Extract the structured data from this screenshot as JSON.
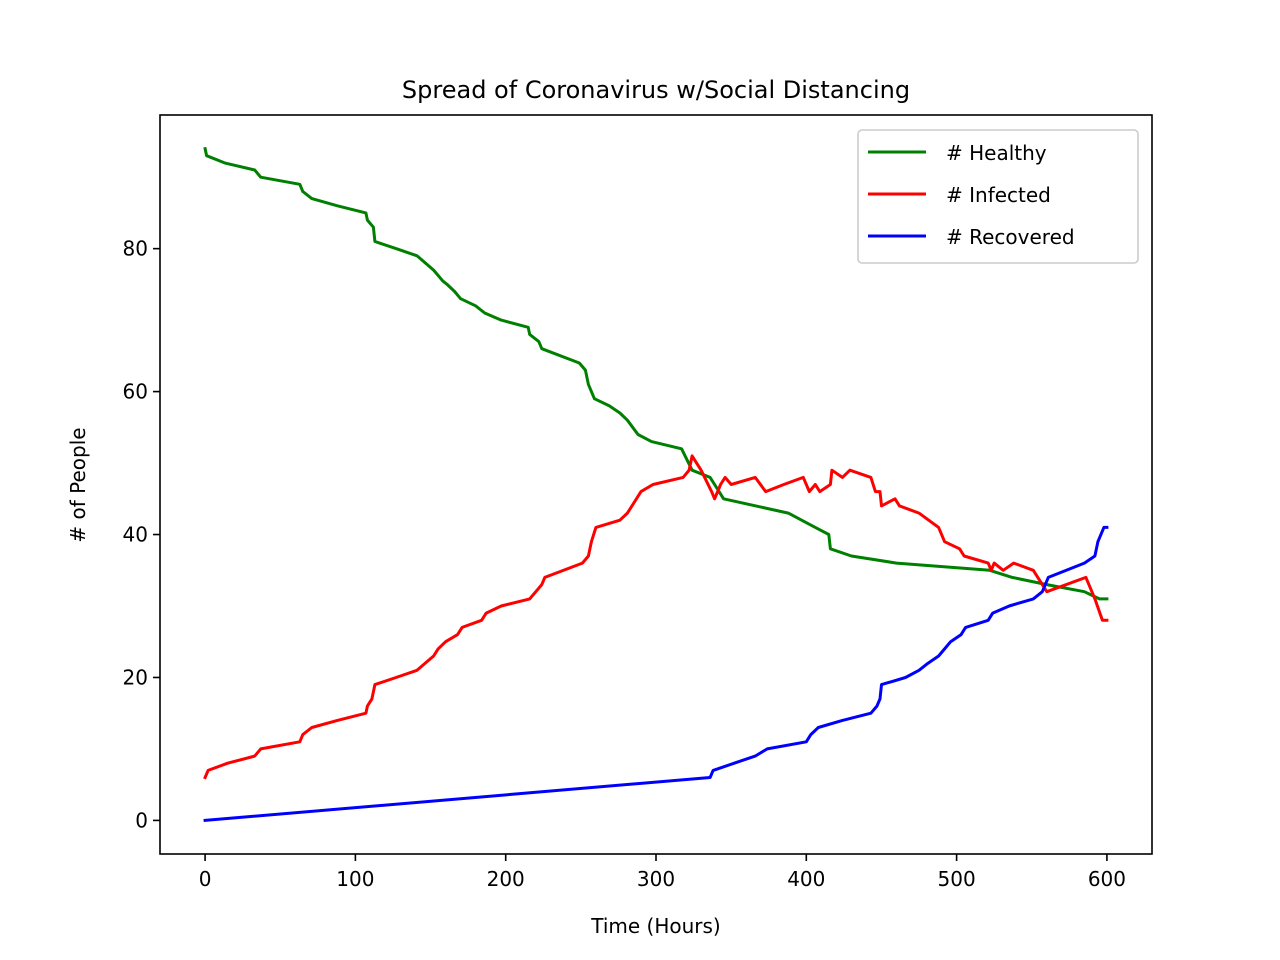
{
  "chart_data": {
    "type": "line",
    "title": "Spread of Coronavirus w/Social Distancing",
    "xlabel": "Time (Hours)",
    "ylabel": "# of People",
    "xlim": [
      -30,
      630
    ],
    "ylim": [
      -4.7,
      98.7
    ],
    "xticks": [
      0,
      100,
      200,
      300,
      400,
      500,
      600
    ],
    "yticks": [
      0,
      20,
      40,
      60,
      80
    ],
    "grid": false,
    "legend_position": "top-right",
    "series": [
      {
        "name": "# Healthy",
        "color": "#008000",
        "points": [
          [
            0,
            94
          ],
          [
            1,
            93
          ],
          [
            13,
            92
          ],
          [
            33,
            91
          ],
          [
            37,
            90
          ],
          [
            63,
            89
          ],
          [
            65,
            88
          ],
          [
            71,
            87
          ],
          [
            88,
            86
          ],
          [
            107,
            85
          ],
          [
            108,
            84
          ],
          [
            112,
            83
          ],
          [
            113,
            81
          ],
          [
            127,
            80
          ],
          [
            141,
            79
          ],
          [
            152,
            77
          ],
          [
            156,
            76
          ],
          [
            158,
            75.5
          ],
          [
            161,
            75
          ],
          [
            166,
            74
          ],
          [
            170,
            73
          ],
          [
            180,
            72
          ],
          [
            186,
            71
          ],
          [
            197,
            70
          ],
          [
            215,
            69
          ],
          [
            216,
            68
          ],
          [
            222,
            67
          ],
          [
            224,
            66
          ],
          [
            249,
            64
          ],
          [
            253,
            63
          ],
          [
            255,
            61
          ],
          [
            259,
            59
          ],
          [
            269,
            58
          ],
          [
            276,
            57
          ],
          [
            281,
            56
          ],
          [
            288,
            54
          ],
          [
            297,
            53
          ],
          [
            317,
            52
          ],
          [
            324,
            49
          ],
          [
            336,
            48
          ],
          [
            339,
            47
          ],
          [
            345,
            45
          ],
          [
            388,
            43
          ],
          [
            406,
            41
          ],
          [
            415,
            40
          ],
          [
            416,
            38
          ],
          [
            430,
            37
          ],
          [
            460,
            36
          ],
          [
            522,
            35
          ],
          [
            537,
            34
          ],
          [
            560,
            33
          ],
          [
            585,
            32
          ],
          [
            595,
            31
          ],
          [
            600,
            31
          ]
        ]
      },
      {
        "name": "# Infected",
        "color": "#ff0000",
        "points": [
          [
            0,
            6
          ],
          [
            2,
            7
          ],
          [
            15,
            8
          ],
          [
            33,
            9
          ],
          [
            37,
            10
          ],
          [
            63,
            11
          ],
          [
            65,
            12
          ],
          [
            71,
            13
          ],
          [
            88,
            14
          ],
          [
            107,
            15
          ],
          [
            108,
            16
          ],
          [
            111,
            17
          ],
          [
            113,
            19
          ],
          [
            127,
            20
          ],
          [
            141,
            21
          ],
          [
            152,
            23
          ],
          [
            155,
            24
          ],
          [
            160,
            25
          ],
          [
            168,
            26
          ],
          [
            171,
            27
          ],
          [
            184,
            28
          ],
          [
            187,
            29
          ],
          [
            197,
            30
          ],
          [
            216,
            31
          ],
          [
            220,
            32
          ],
          [
            224,
            33
          ],
          [
            226,
            34
          ],
          [
            251,
            36
          ],
          [
            255,
            37
          ],
          [
            257,
            39
          ],
          [
            260,
            41
          ],
          [
            276,
            42
          ],
          [
            281,
            43
          ],
          [
            290,
            46
          ],
          [
            298,
            47
          ],
          [
            318,
            48
          ],
          [
            322,
            49
          ],
          [
            324,
            51
          ],
          [
            330,
            49
          ],
          [
            337,
            46
          ],
          [
            339,
            45
          ],
          [
            343,
            47
          ],
          [
            346,
            48
          ],
          [
            350,
            47
          ],
          [
            366,
            48
          ],
          [
            373,
            46
          ],
          [
            385,
            47
          ],
          [
            398,
            48
          ],
          [
            402,
            46
          ],
          [
            406,
            47
          ],
          [
            409,
            46
          ],
          [
            416,
            47
          ],
          [
            417,
            49
          ],
          [
            424,
            48
          ],
          [
            429,
            49
          ],
          [
            443,
            48
          ],
          [
            446,
            46
          ],
          [
            449,
            46
          ],
          [
            450,
            44
          ],
          [
            459,
            45
          ],
          [
            462,
            44
          ],
          [
            475,
            43
          ],
          [
            488,
            41
          ],
          [
            492,
            39
          ],
          [
            502,
            38
          ],
          [
            505,
            37
          ],
          [
            521,
            36
          ],
          [
            523,
            35
          ],
          [
            525,
            36
          ],
          [
            531,
            35
          ],
          [
            538,
            36
          ],
          [
            551,
            35
          ],
          [
            560,
            32
          ],
          [
            586,
            34
          ],
          [
            588,
            33
          ],
          [
            592,
            31
          ],
          [
            597,
            28
          ],
          [
            600,
            28
          ]
        ]
      },
      {
        "name": "# Recovered",
        "color": "#0000ff",
        "points": [
          [
            0,
            0
          ],
          [
            336,
            6
          ],
          [
            338,
            7
          ],
          [
            352,
            8
          ],
          [
            366,
            9
          ],
          [
            374,
            10
          ],
          [
            400,
            11
          ],
          [
            403,
            12
          ],
          [
            408,
            13
          ],
          [
            424,
            14
          ],
          [
            443,
            15
          ],
          [
            447,
            16
          ],
          [
            449,
            17
          ],
          [
            450,
            19
          ],
          [
            466,
            20
          ],
          [
            475,
            21
          ],
          [
            481,
            22
          ],
          [
            488,
            23
          ],
          [
            492,
            24
          ],
          [
            496,
            25
          ],
          [
            503,
            26
          ],
          [
            506,
            27
          ],
          [
            521,
            28
          ],
          [
            524,
            29
          ],
          [
            535,
            30
          ],
          [
            551,
            31
          ],
          [
            557,
            32
          ],
          [
            561,
            34
          ],
          [
            585,
            36
          ],
          [
            592,
            37
          ],
          [
            594,
            39
          ],
          [
            598,
            41
          ],
          [
            600,
            41
          ]
        ]
      }
    ]
  }
}
